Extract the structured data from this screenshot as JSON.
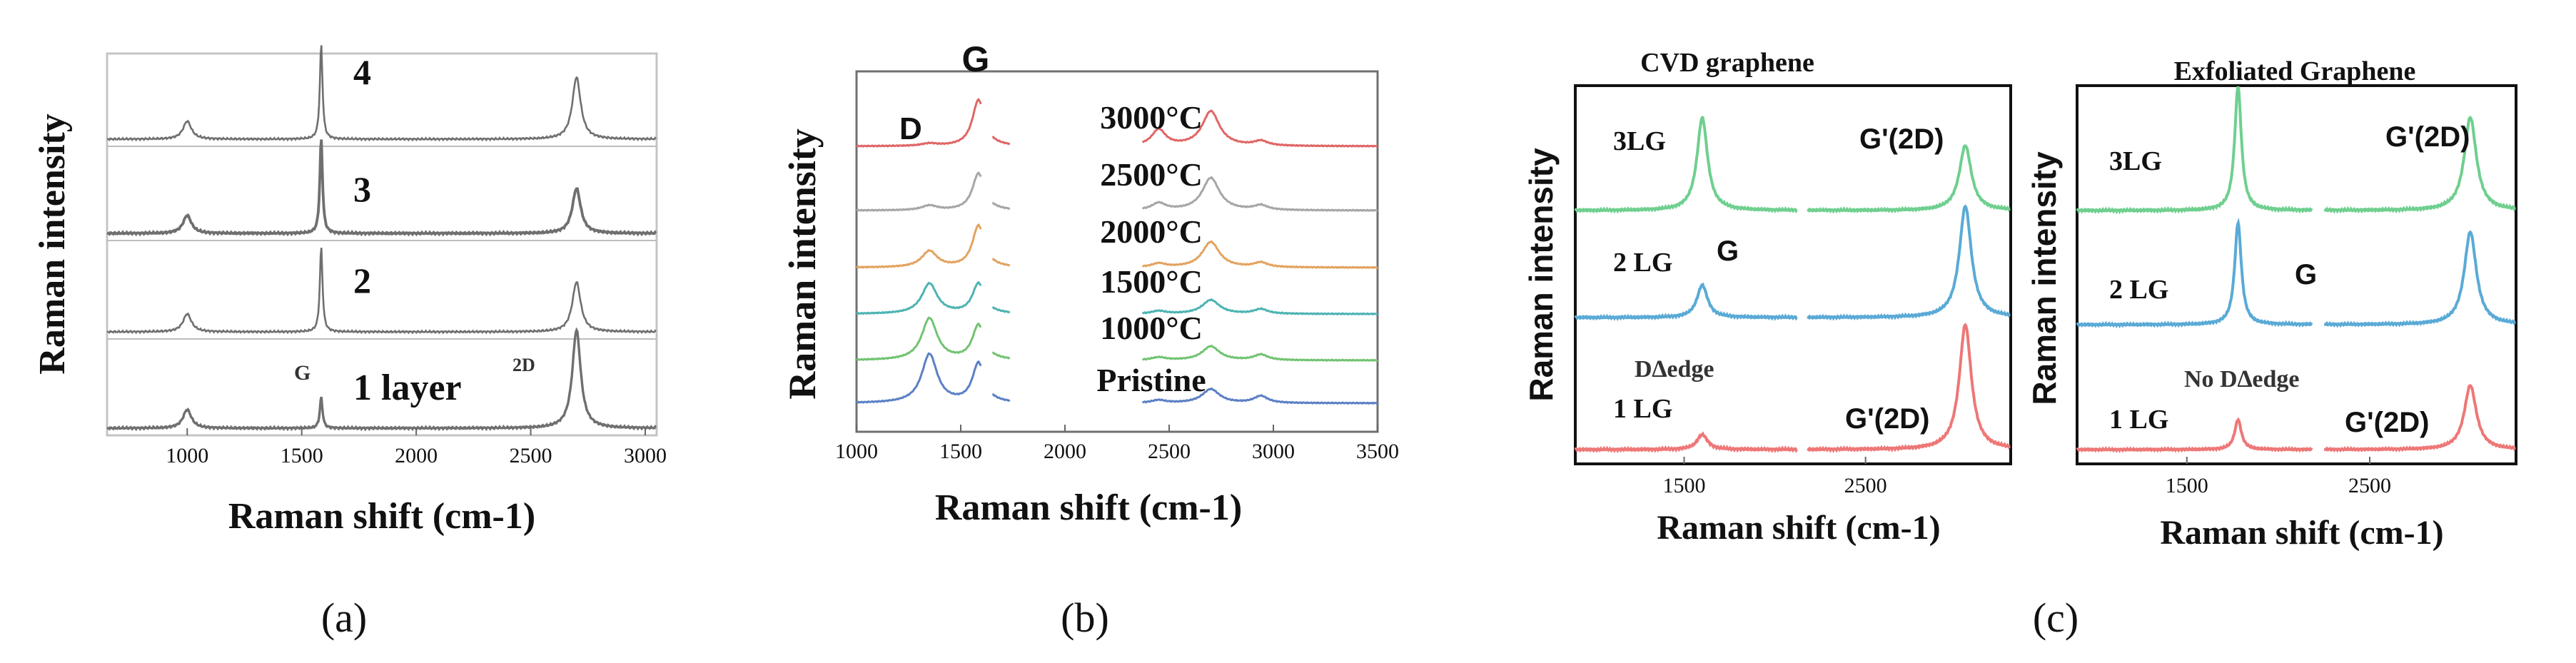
{
  "figure": {
    "captions": [
      "(a)",
      "(b)",
      "(c)"
    ]
  },
  "chart_data": [
    {
      "id": "a",
      "type": "line",
      "xlabel": "Raman shift (cm-1)",
      "ylabel": "Raman intensity",
      "xlim": [
        650,
        3050
      ],
      "xticks": [
        1000,
        1500,
        2000,
        2500,
        3000
      ],
      "xtick_labels": [
        "1000",
        "1500",
        "2000",
        "2500",
        "3000"
      ],
      "color": "#6f6f6f",
      "stack_labels": [
        "4",
        "3",
        "2",
        "1 layer"
      ],
      "annotations": [
        "G",
        "2D"
      ],
      "peaks": [
        {
          "x": 1000,
          "width": 22
        },
        {
          "x": 1585,
          "width": 7
        },
        {
          "x": 2700,
          "width": 22
        }
      ],
      "series": [
        {
          "name": "4",
          "heights": [
            0.18,
            0.95,
            0.62
          ],
          "weight": 0.8
        },
        {
          "name": "3",
          "heights": [
            0.18,
            0.95,
            0.45
          ],
          "weight": 1.4
        },
        {
          "name": "2",
          "heights": [
            0.18,
            0.85,
            0.5
          ],
          "weight": 0.8
        },
        {
          "name": "1 layer",
          "heights": [
            0.18,
            0.3,
            0.95
          ],
          "weight": 1.2
        }
      ]
    },
    {
      "id": "b",
      "type": "line",
      "xlabel": "Raman shift (cm-1)",
      "ylabel": "Raman intensity",
      "xlim": [
        1000,
        3500
      ],
      "xticks": [
        1000,
        1500,
        2000,
        2500,
        3000,
        3500
      ],
      "xtick_labels": [
        "1000",
        "1500",
        "2000",
        "2500",
        "3000",
        "3500"
      ],
      "annotations": [
        "G",
        "D"
      ],
      "peaks": [
        {
          "x": 1350,
          "width": 45
        },
        {
          "x": 1585,
          "width": 35
        },
        {
          "x": 2450,
          "width": 40
        },
        {
          "x": 2700,
          "width": 50
        },
        {
          "x": 2940,
          "width": 40
        }
      ],
      "series": [
        {
          "name": "3000°C",
          "color": "#e06666",
          "heights": [
            0.05,
            1.0,
            0.35,
            0.75,
            0.1
          ]
        },
        {
          "name": "2500°C",
          "color": "#a6a6a6",
          "heights": [
            0.1,
            0.8,
            0.15,
            0.7,
            0.1
          ]
        },
        {
          "name": "2000°C",
          "color": "#e3a360",
          "heights": [
            0.35,
            0.9,
            0.08,
            0.55,
            0.1
          ]
        },
        {
          "name": "1500°C",
          "color": "#4db3b3",
          "heights": [
            0.65,
            0.65,
            0.06,
            0.3,
            0.1
          ]
        },
        {
          "name": "1000°C",
          "color": "#72c372",
          "heights": [
            0.9,
            0.75,
            0.06,
            0.3,
            0.12
          ]
        },
        {
          "name": "Pristine",
          "color": "#5b80c4",
          "heights": [
            1.05,
            0.85,
            0.06,
            0.3,
            0.15
          ]
        }
      ]
    },
    {
      "id": "c1",
      "type": "line",
      "title": "CVD graphene",
      "xlabel": "Raman shift (cm-1)",
      "ylabel": "Raman intensity",
      "xlim": [
        900,
        3300
      ],
      "xticks": [
        1500,
        2500
      ],
      "xtick_labels": [
        "1500",
        "2500"
      ],
      "annotations": [
        "G",
        "D∆edge",
        "G'(2D)",
        "G'(2D)"
      ],
      "peaks": [
        {
          "x": 1600,
          "width": 35
        },
        {
          "x": 3050,
          "width": 40
        }
      ],
      "series": [
        {
          "name": "3LG",
          "color": "#6fcf8f",
          "heights": [
            1.0,
            0.7
          ]
        },
        {
          "name": "2 LG",
          "color": "#5aaad6",
          "heights": [
            0.35,
            1.2
          ]
        },
        {
          "name": "1 LG",
          "color": "#ee7777",
          "heights": [
            0.15,
            1.25
          ]
        }
      ]
    },
    {
      "id": "c2",
      "type": "line",
      "title": "Exfoliated Graphene",
      "xlabel": "Raman shift (cm-1)",
      "ylabel": "Raman intensity",
      "xlim": [
        900,
        3300
      ],
      "xticks": [
        1500,
        2500
      ],
      "xtick_labels": [
        "1500",
        "2500"
      ],
      "annotations": [
        "G",
        "No D∆edge",
        "G'(2D)",
        "G'(2D)"
      ],
      "peaks": [
        {
          "x": 1780,
          "width": 22
        },
        {
          "x": 3050,
          "width": 40
        }
      ],
      "series": [
        {
          "name": "3LG",
          "color": "#6fcf8f",
          "heights": [
            1.2,
            0.9
          ]
        },
        {
          "name": "2 LG",
          "color": "#5aaad6",
          "heights": [
            1.1,
            1.0
          ]
        },
        {
          "name": "1 LG",
          "color": "#ee7777",
          "heights": [
            0.35,
            0.75
          ]
        }
      ]
    }
  ]
}
